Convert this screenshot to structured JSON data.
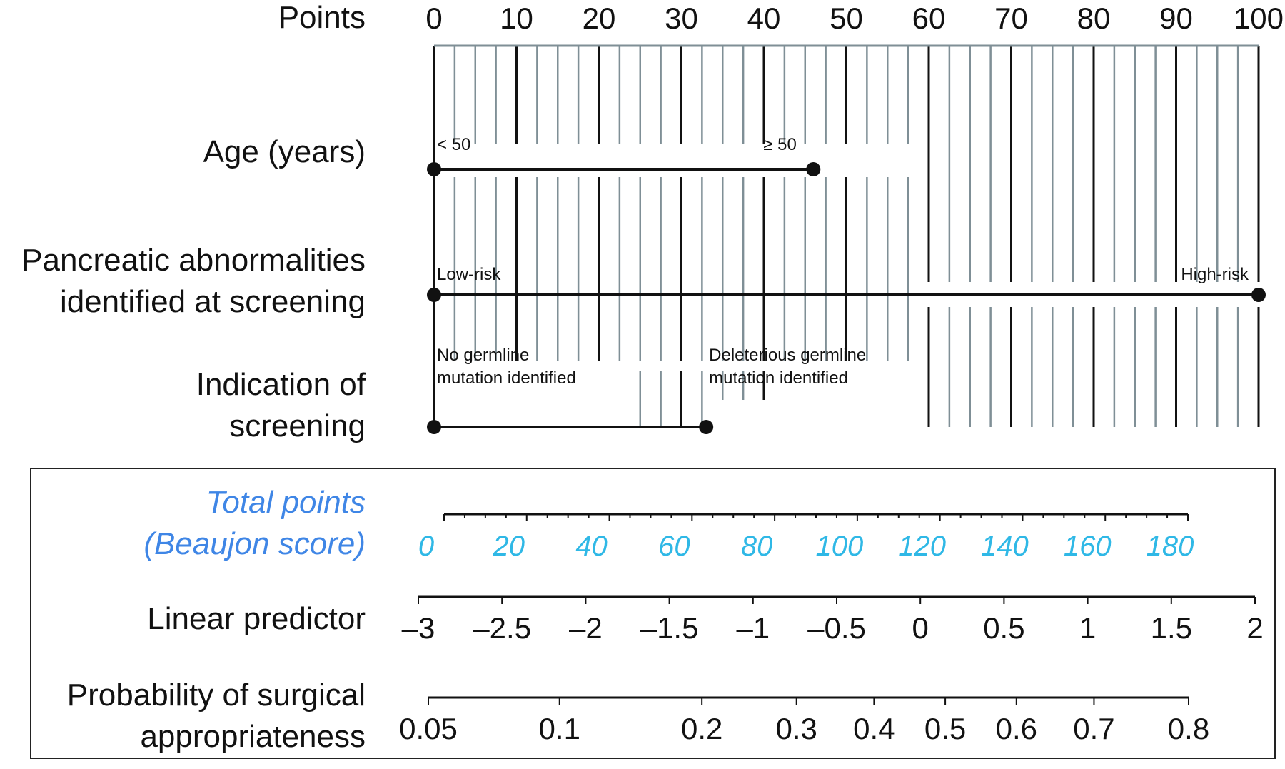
{
  "chart_data": {
    "type": "nomogram",
    "points_axis": {
      "label": "Points",
      "range": [
        0,
        100
      ],
      "tick_labels": [
        0,
        10,
        20,
        30,
        40,
        50,
        60,
        70,
        80,
        90,
        100
      ],
      "major_step": 10,
      "minor_step": 2.5
    },
    "variables": [
      {
        "label": "Age (years)",
        "levels": [
          {
            "name": "< 50",
            "points": 0
          },
          {
            "name": "≥ 50",
            "points": 46
          }
        ]
      },
      {
        "label": "Pancreatic abnormalities\nidentified at screening",
        "levels": [
          {
            "name": "Low-risk",
            "points": 0
          },
          {
            "name": "High-risk",
            "points": 100
          }
        ]
      },
      {
        "label": "Indication of\nscreening",
        "levels": [
          {
            "name": "No germline\nmutation identified",
            "points": 0
          },
          {
            "name": "Deleterious germline\nmutation identified",
            "points": 33
          }
        ]
      }
    ],
    "total_points": {
      "label": "Total points\n(Beaujon score)",
      "range": [
        0,
        180
      ],
      "tick_labels": [
        0,
        20,
        40,
        60,
        80,
        100,
        120,
        140,
        160,
        180
      ],
      "color": "#3f86e6",
      "tick_color": "#2fb8e6"
    },
    "linear_predictor": {
      "label": "Linear predictor",
      "tick_values": [
        -3,
        -2.5,
        -2,
        -1.5,
        -1,
        -0.5,
        0,
        0.5,
        1,
        1.5,
        2
      ],
      "tick_labels": [
        "–3",
        "–2.5",
        "–2",
        "–1.5",
        "–1",
        "–0.5",
        "0",
        "0.5",
        "1",
        "1.5",
        "2"
      ]
    },
    "probability": {
      "label": "Probability of surgical\nappropriateness",
      "range": [
        0.05,
        0.8
      ],
      "tick_values": [
        0.05,
        0.1,
        0.2,
        0.3,
        0.4,
        0.5,
        0.6,
        0.7,
        0.8
      ],
      "tick_labels": [
        "0.05",
        "0.1",
        "0.2",
        "0.3",
        "0.4",
        "0.5",
        "0.6",
        "0.7",
        "0.8"
      ]
    }
  }
}
